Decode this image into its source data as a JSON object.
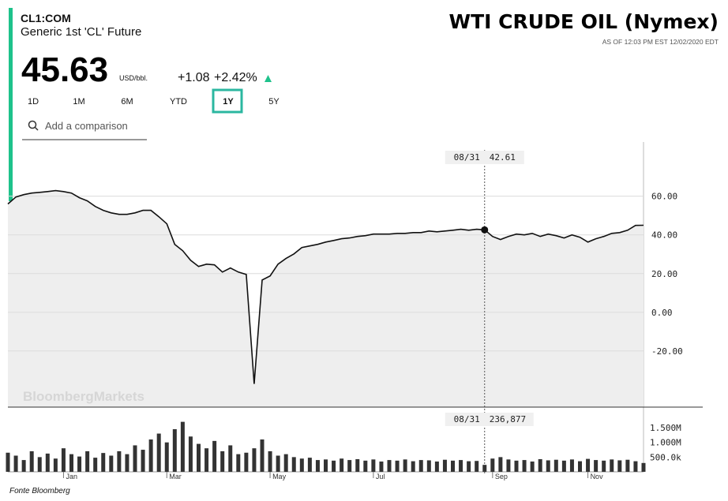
{
  "header": {
    "symbol": "CL1:COM",
    "name": "Generic 1st 'CL' Future",
    "price": "45.63",
    "unit": "USD/bbl.",
    "change": "+1.08",
    "change_pct": "+2.42%",
    "title": "WTI CRUDE OIL (Nymex)",
    "as_of": "AS OF 12:03 PM EST 12/02/2020 EDT",
    "ranges": [
      "1D",
      "1M",
      "6M",
      "YTD",
      "1Y",
      "5Y"
    ],
    "selected_range": "1Y",
    "compare_placeholder": "Add a comparison",
    "watermark": "BloombergMarkets",
    "source": "Fonte Bloomberg"
  },
  "chart_data": [
    {
      "type": "line",
      "color": "#111111",
      "area_color": "#eeeeee",
      "grid": true,
      "categories": [
        null,
        null,
        null,
        null,
        null,
        null,
        null,
        "Jan",
        null,
        null,
        null,
        null,
        null,
        null,
        null,
        null,
        null,
        null,
        null,
        null,
        "Mar",
        null,
        null,
        null,
        null,
        null,
        null,
        null,
        null,
        null,
        null,
        null,
        null,
        "May",
        null,
        null,
        null,
        null,
        null,
        null,
        null,
        null,
        null,
        null,
        null,
        null,
        "Jul",
        null,
        null,
        null,
        null,
        null,
        null,
        null,
        null,
        null,
        null,
        null,
        null,
        null,
        "08/31",
        "Sep",
        null,
        null,
        null,
        null,
        null,
        null,
        null,
        null,
        null,
        null,
        null,
        "Nov",
        null,
        null,
        null,
        null,
        null,
        null,
        null
      ],
      "values": [
        56,
        59.6,
        60.8,
        61.6,
        62,
        62.4,
        62.9,
        62.4,
        61.6,
        59.2,
        57.6,
        54.7,
        52.7,
        51.4,
        50.6,
        50.6,
        51.4,
        52.7,
        52.7,
        49.4,
        45.7,
        35.1,
        31.8,
        26.9,
        23.7,
        24.9,
        24.5,
        20.8,
        22.9,
        20.8,
        19.6,
        -37,
        16.7,
        18.8,
        24.9,
        27.8,
        30.2,
        33.5,
        34.3,
        35.1,
        36.3,
        37.1,
        38,
        38.4,
        39.2,
        39.6,
        40.4,
        40.4,
        40.4,
        40.8,
        40.8,
        41.2,
        41.2,
        42,
        41.6,
        42,
        42.4,
        42.9,
        42.4,
        42.9,
        42.61,
        39.2,
        37.6,
        39.2,
        40.4,
        40,
        40.8,
        39.2,
        40.4,
        39.6,
        38.4,
        40,
        38.8,
        36.3,
        38,
        39.2,
        40.8,
        41.2,
        42.4,
        44.9,
        45
      ],
      "ylim": [
        -49,
        88
      ],
      "yticks": [
        {
          "value": 60,
          "label": "60.00"
        },
        {
          "value": 40,
          "label": "40.00"
        },
        {
          "value": 20,
          "label": "20.00"
        },
        {
          "value": 0,
          "label": "0.00"
        },
        {
          "value": -20,
          "label": "-20.00"
        }
      ],
      "crosshair": {
        "x": "08/31",
        "value": 42.61
      }
    },
    {
      "type": "bar",
      "color": "#333333",
      "categories": [
        null,
        null,
        null,
        null,
        null,
        null,
        null,
        "Jan",
        null,
        null,
        null,
        null,
        null,
        null,
        null,
        null,
        null,
        null,
        null,
        null,
        "Mar",
        null,
        null,
        null,
        null,
        null,
        null,
        null,
        null,
        null,
        null,
        null,
        null,
        "May",
        null,
        null,
        null,
        null,
        null,
        null,
        null,
        null,
        null,
        null,
        null,
        null,
        "Jul",
        null,
        null,
        null,
        null,
        null,
        null,
        null,
        null,
        null,
        null,
        null,
        null,
        null,
        "08/31",
        "Sep",
        null,
        null,
        null,
        null,
        null,
        null,
        null,
        null,
        null,
        null,
        null,
        "Nov",
        null,
        null,
        null,
        null,
        null,
        null,
        null
      ],
      "values": [
        650000,
        550000,
        400000,
        700000,
        500000,
        620000,
        450000,
        800000,
        600000,
        520000,
        700000,
        480000,
        640000,
        550000,
        700000,
        600000,
        900000,
        750000,
        1100000,
        1300000,
        1000000,
        1450000,
        1700000,
        1200000,
        950000,
        800000,
        1050000,
        700000,
        900000,
        600000,
        650000,
        800000,
        1100000,
        700000,
        550000,
        600000,
        500000,
        450000,
        480000,
        400000,
        420000,
        380000,
        450000,
        400000,
        430000,
        380000,
        420000,
        350000,
        400000,
        380000,
        420000,
        360000,
        400000,
        390000,
        350000,
        410000,
        380000,
        400000,
        360000,
        370000,
        236877,
        450000,
        500000,
        420000,
        380000,
        400000,
        350000,
        430000,
        390000,
        410000,
        380000,
        420000,
        360000,
        440000,
        400000,
        380000,
        420000,
        390000,
        410000,
        360000,
        300000
      ],
      "ylim": [
        0,
        2200000
      ],
      "yticks": [
        {
          "value": 1500000,
          "label": "1.500M"
        },
        {
          "value": 1000000,
          "label": "1.000M"
        },
        {
          "value": 500000,
          "label": "500.0k"
        }
      ],
      "crosshair": {
        "x": "08/31",
        "value": 236877,
        "label": "236,877"
      }
    }
  ]
}
